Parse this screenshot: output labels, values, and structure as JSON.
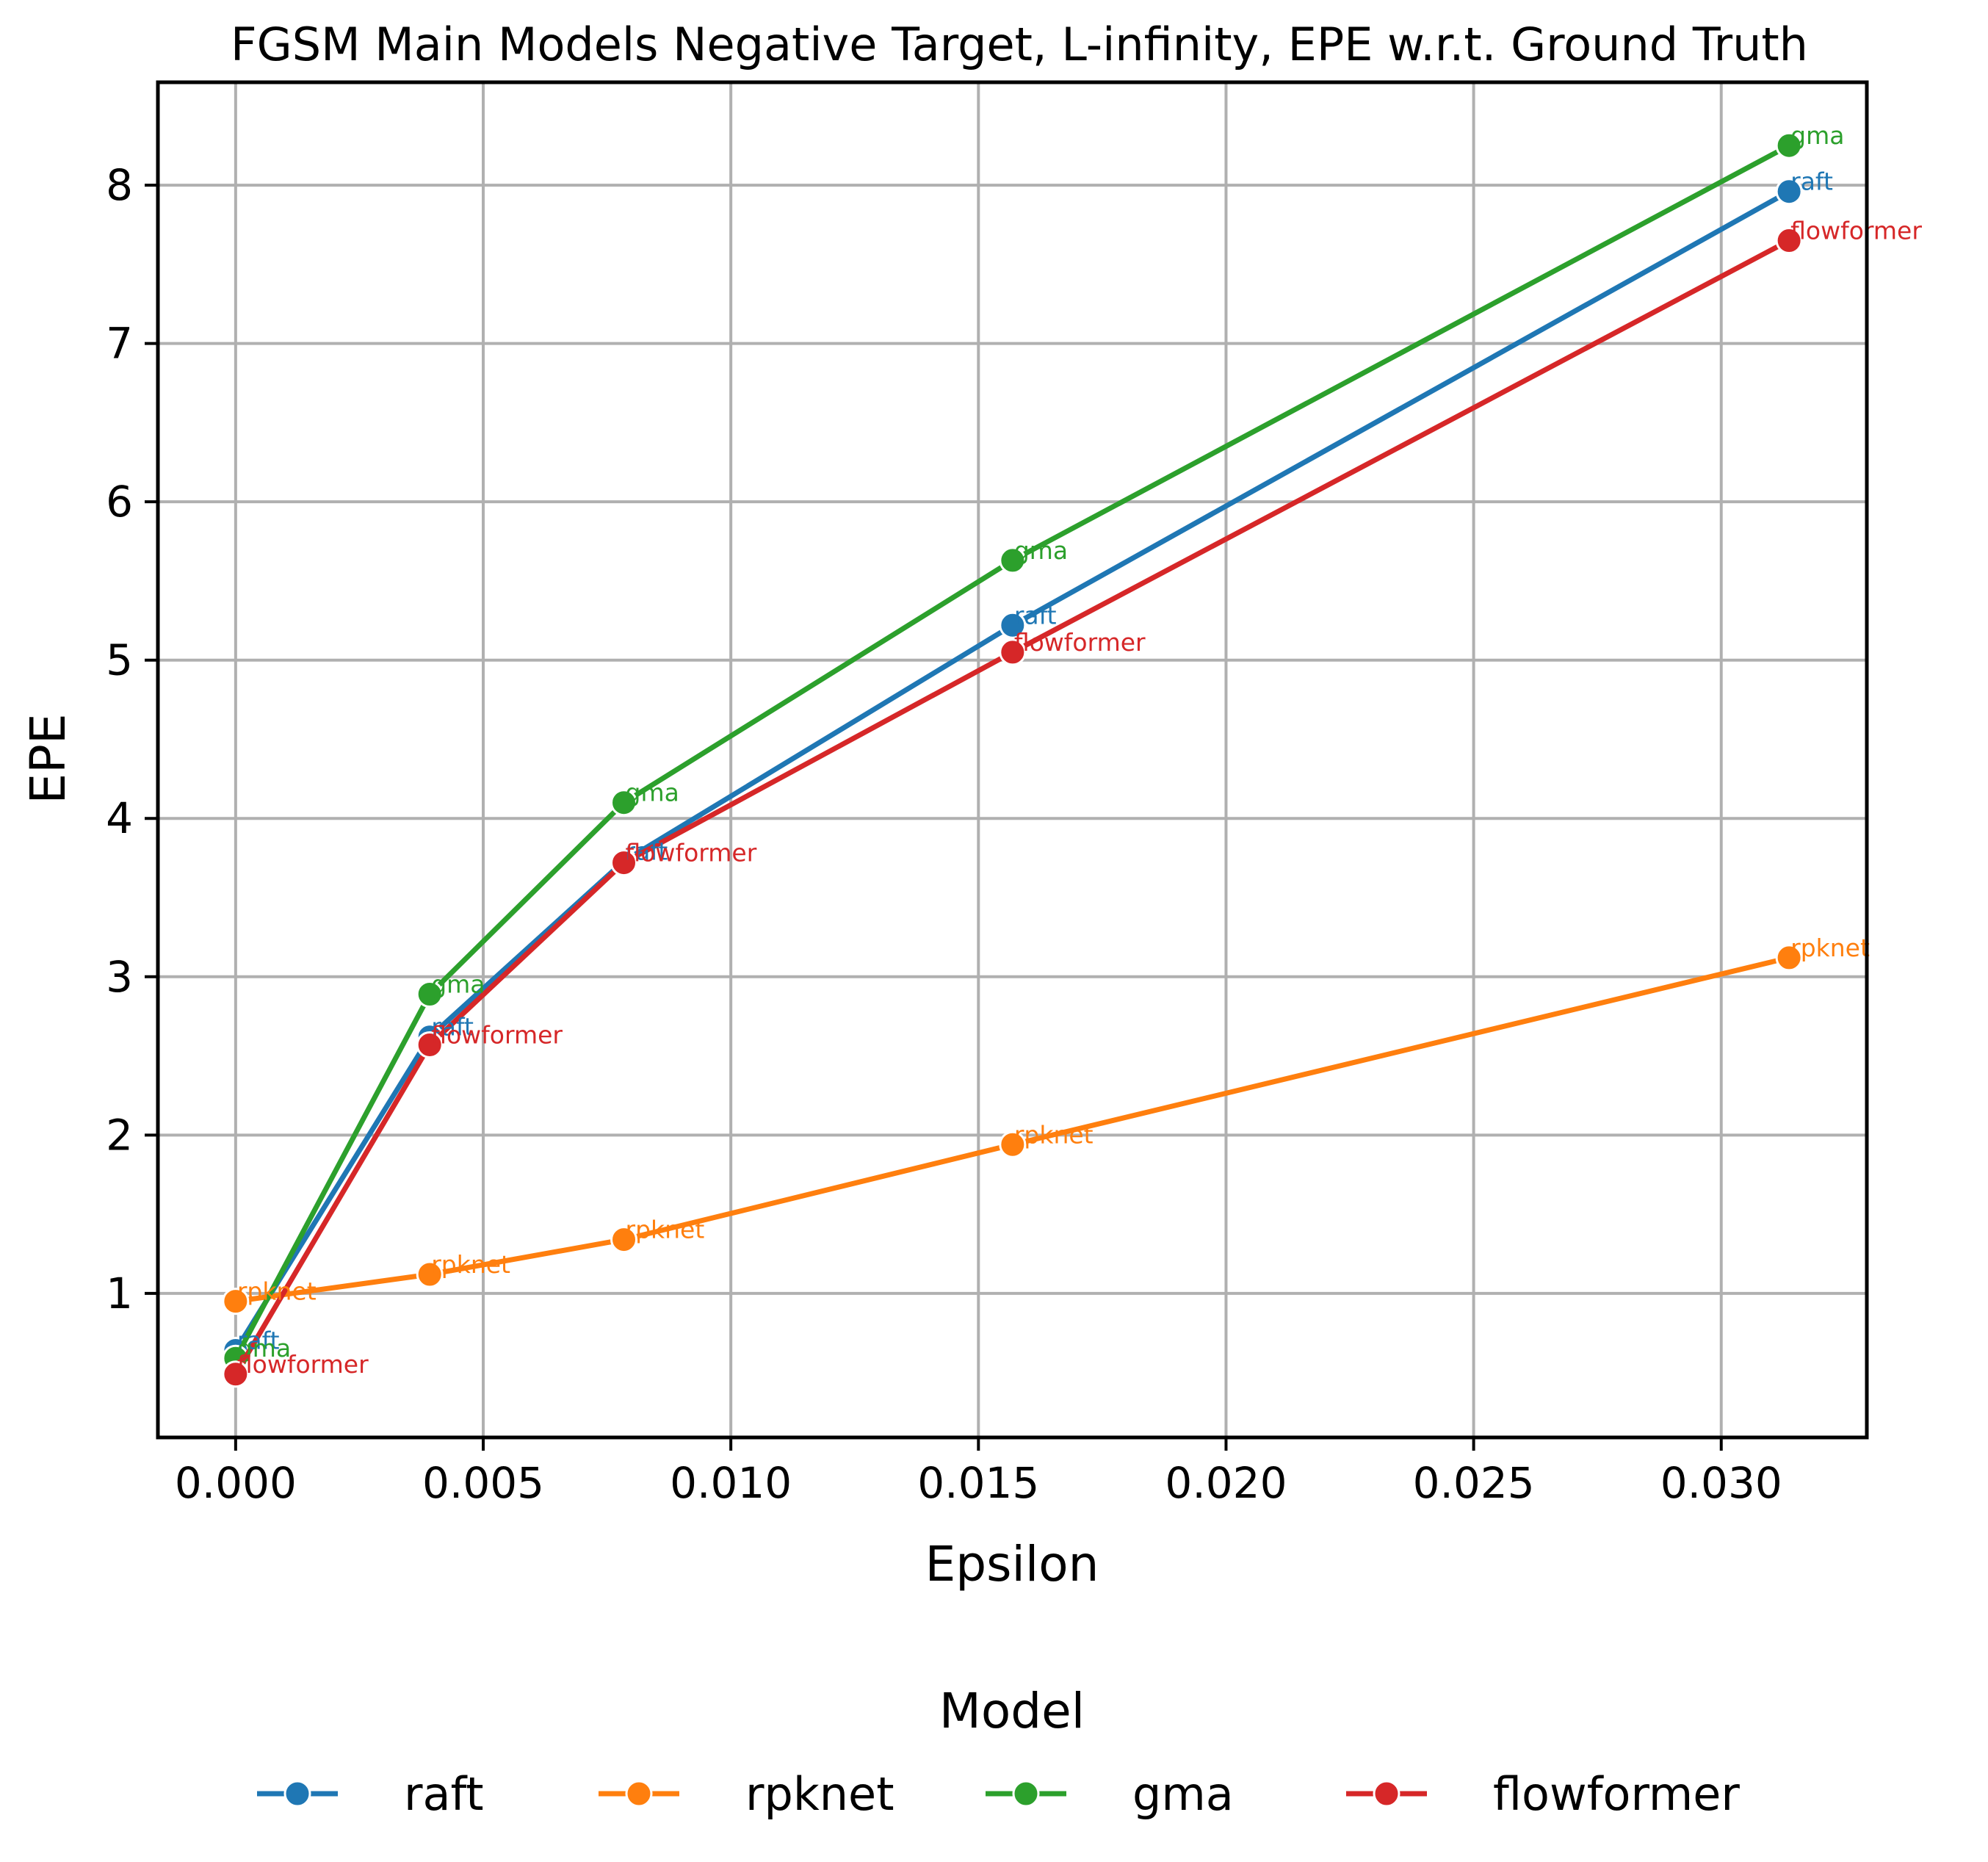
{
  "chart_data": {
    "type": "line",
    "title": "FGSM Main Models Negative Target, L-infinity, EPE w.r.t. Ground Truth",
    "xlabel": "Epsilon",
    "ylabel": "EPE",
    "xlim": [
      -0.00157,
      0.03294
    ],
    "ylim": [
      0.09,
      8.65
    ],
    "xticks": [
      0.0,
      0.005,
      0.01,
      0.015,
      0.02,
      0.025,
      0.03
    ],
    "xtick_labels": [
      "0.000",
      "0.005",
      "0.010",
      "0.015",
      "0.020",
      "0.025",
      "0.030"
    ],
    "yticks": [
      1,
      2,
      3,
      4,
      5,
      6,
      7,
      8
    ],
    "ytick_labels": [
      "1",
      "2",
      "3",
      "4",
      "5",
      "6",
      "7",
      "8"
    ],
    "grid": true,
    "legend": {
      "title": "Model",
      "position": "bottom-center"
    },
    "x": [
      0.0,
      0.00392,
      0.00784,
      0.01569,
      0.03137
    ],
    "series": [
      {
        "name": "raft",
        "color": "#1f77b4",
        "values": [
          0.64,
          2.62,
          3.73,
          5.22,
          7.96
        ],
        "point_label": "raft"
      },
      {
        "name": "rpknet",
        "color": "#ff7f0e",
        "values": [
          0.95,
          1.12,
          1.34,
          1.94,
          3.12
        ],
        "point_label": "rpknet"
      },
      {
        "name": "gma",
        "color": "#2ca02c",
        "values": [
          0.59,
          2.89,
          4.1,
          5.63,
          8.25
        ],
        "point_label": "gma"
      },
      {
        "name": "flowformer",
        "color": "#d62728",
        "values": [
          0.49,
          2.57,
          3.72,
          5.05,
          7.65
        ],
        "point_label": "flowformer"
      }
    ]
  }
}
